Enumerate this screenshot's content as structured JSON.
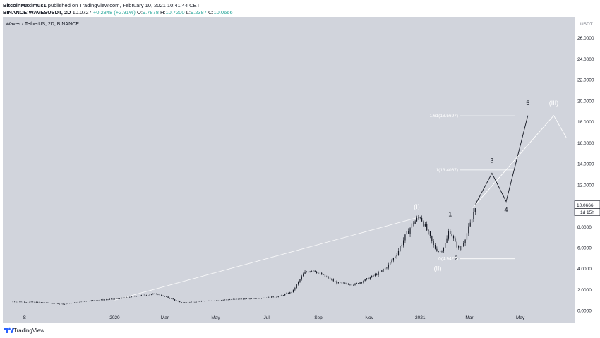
{
  "header": {
    "line1_author": "BitcoinMaximus1",
    "line1_rest": " published on TradingView.com, February 10, 2021 10:41:44 CET",
    "symbol": "BINANCE:WAVESUSDT, 2D",
    "last": "10.0727",
    "change": "+0.2848 (+2.91%)",
    "ohlc_o_label": "O:",
    "ohlc_o": "9.7878",
    "ohlc_h_label": "H:",
    "ohlc_h": "10.7200",
    "ohlc_l_label": "L:",
    "ohlc_l": "9.2387",
    "ohlc_c_label": "C:",
    "ohlc_c": "10.0666"
  },
  "legend_title": "Waves / TetherUS, 2D, BINANCE",
  "footer": {
    "brand": "TradingView"
  },
  "colors": {
    "background": "#d1d4dc",
    "panel": "#ffffff",
    "candle": "#131722",
    "wave_line": "#131722",
    "fib_line": "#ffffff",
    "projection_line": "#ffffff"
  },
  "chart_data": {
    "type": "candlestick",
    "title": "Waves / TetherUS, 2D, BINANCE",
    "y_axis_unit": "USDT",
    "ylim": [
      -1.2,
      28.0
    ],
    "y_ticks": [
      "26.0000",
      "24.0000",
      "22.0000",
      "20.0000",
      "18.0000",
      "16.0000",
      "14.0000",
      "12.0000",
      "10.0000",
      "8.0000",
      "6.0000",
      "4.0000",
      "2.0000",
      "0.0000"
    ],
    "x_ticks": [
      "S",
      "2020",
      "Mar",
      "May",
      "Jul",
      "Sep",
      "Nov",
      "2021",
      "Mar",
      "May"
    ],
    "current_price": "10.0666",
    "countdown": "1d 15h",
    "price_path": [
      [
        "2019-09-01",
        0.85
      ],
      [
        "2019-10-01",
        0.8
      ],
      [
        "2019-11-01",
        0.62
      ],
      [
        "2019-12-01",
        0.95
      ],
      [
        "2020-01-01",
        1.1
      ],
      [
        "2020-02-01",
        1.45
      ],
      [
        "2020-02-20",
        1.6
      ],
      [
        "2020-03-10",
        1.1
      ],
      [
        "2020-03-20",
        0.75
      ],
      [
        "2020-04-15",
        0.9
      ],
      [
        "2020-05-15",
        1.05
      ],
      [
        "2020-06-15",
        1.15
      ],
      [
        "2020-07-15",
        1.35
      ],
      [
        "2020-08-01",
        1.8
      ],
      [
        "2020-08-15",
        3.6
      ],
      [
        "2020-08-25",
        3.9
      ],
      [
        "2020-09-10",
        3.2
      ],
      [
        "2020-09-25",
        2.6
      ],
      [
        "2020-10-15",
        2.5
      ],
      [
        "2020-11-01",
        3.1
      ],
      [
        "2020-11-15",
        3.7
      ],
      [
        "2020-11-25",
        4.4
      ],
      [
        "2020-12-05",
        5.6
      ],
      [
        "2020-12-15",
        7.2
      ],
      [
        "2020-12-23",
        8.3
      ],
      [
        "2021-01-01",
        9.0
      ],
      [
        "2021-01-10",
        7.5
      ],
      [
        "2021-01-18",
        6.0
      ],
      [
        "2021-01-25",
        5.6
      ],
      [
        "2021-02-01",
        6.5
      ],
      [
        "2021-02-05",
        7.8
      ],
      [
        "2021-02-12",
        6.4
      ],
      [
        "2021-02-18",
        5.8
      ],
      [
        "2021-02-25",
        7.2
      ],
      [
        "2021-03-03",
        8.4
      ],
      [
        "2021-03-08",
        10.07
      ]
    ],
    "fib_levels": [
      {
        "label": "1.61(18.5697)",
        "value": 18.5697
      },
      {
        "label": "1(13.4067)",
        "value": 13.4067
      },
      {
        "label": "0(4.9427)",
        "value": 4.9427
      }
    ],
    "wave_labels": [
      "(I)",
      "(II)",
      "1",
      "2",
      "3",
      "4",
      "5",
      "(III)"
    ],
    "projection_path": [
      [
        "2021-03-08",
        10.1
      ],
      [
        "2021-03-28",
        13.1
      ],
      [
        "2021-04-14",
        10.4
      ],
      [
        "2021-05-10",
        18.6
      ]
    ],
    "secondary_projection": [
      [
        "2021-03-05",
        9.8
      ],
      [
        "2021-06-10",
        18.6
      ],
      [
        "2021-06-25",
        16.5
      ]
    ],
    "trend_line": [
      [
        "2020-01-01",
        1.0
      ],
      [
        "2020-12-30",
        8.9
      ]
    ]
  }
}
